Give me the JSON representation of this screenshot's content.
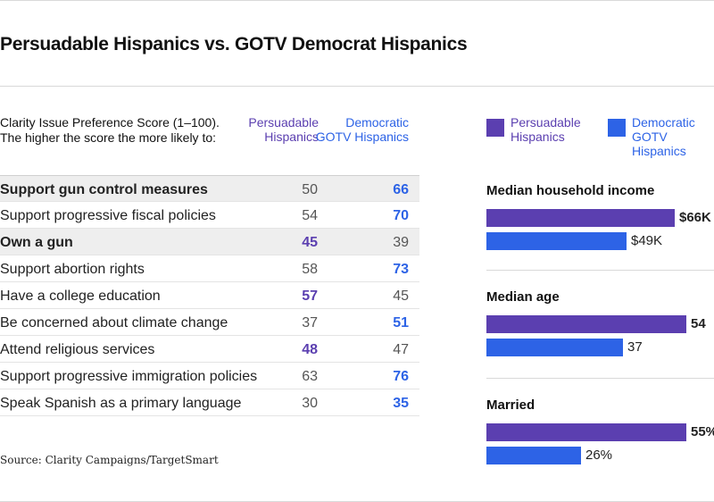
{
  "title": "Persuadable Hispanics vs. GOTV Democrat Hispanics",
  "description": "Clarity Issue Preference Score (1–100). The higher the score the more likely to:",
  "columns": {
    "persuadable": "Persuadable Hispanics",
    "democratic": "Democratic GOTV Hispanics"
  },
  "colors": {
    "persuadable": "#5b3fb0",
    "democratic": "#2d63e6"
  },
  "source": "Source: Clarity Campaigns/TargetSmart",
  "chart_data": [
    {
      "type": "table",
      "title": "Clarity Issue Preference Score (1–100). The higher the score the more likely to:",
      "columns": [
        "Persuadable Hispanics",
        "Democratic GOTV Hispanics"
      ],
      "rows": [
        {
          "label": "Support gun control measures",
          "persuadable": "50",
          "democratic": "66",
          "winner": "democratic",
          "bold": true,
          "shaded": true
        },
        {
          "label": "Support progressive fiscal policies",
          "persuadable": "54",
          "democratic": "70",
          "winner": "democratic",
          "bold": false,
          "shaded": false
        },
        {
          "label": "Own a gun",
          "persuadable": "45",
          "democratic": "39",
          "winner": "persuadable",
          "bold": true,
          "shaded": true
        },
        {
          "label": "Support abortion rights",
          "persuadable": "58",
          "democratic": "73",
          "winner": "democratic",
          "bold": false,
          "shaded": false
        },
        {
          "label": "Have a college education",
          "persuadable": "57",
          "democratic": "45",
          "winner": "persuadable",
          "bold": false,
          "shaded": false
        },
        {
          "label": "Be concerned about climate change",
          "persuadable": "37",
          "democratic": "51",
          "winner": "democratic",
          "bold": false,
          "shaded": false
        },
        {
          "label": "Attend religious services",
          "persuadable": "48",
          "democratic": "47",
          "winner": "persuadable",
          "bold": false,
          "shaded": false
        },
        {
          "label": "Support progressive immigration policies",
          "persuadable": "63",
          "democratic": "76",
          "winner": "democratic",
          "bold": false,
          "shaded": false
        },
        {
          "label": "Speak Spanish as a primary language",
          "persuadable": "30",
          "democratic": "35",
          "winner": "democratic",
          "bold": false,
          "shaded": false
        }
      ]
    },
    {
      "type": "bar",
      "orientation": "horizontal",
      "legend": [
        "Persuadable Hispanics",
        "Democratic GOTV Hispanics"
      ],
      "groups": [
        {
          "title": "Median household income",
          "persuadable": 66,
          "democratic": 49,
          "persuadable_label": "$66K",
          "democratic_label": "$49K",
          "max": 70
        },
        {
          "title": "Median age",
          "persuadable": 54,
          "democratic": 37,
          "persuadable_label": "54",
          "democratic_label": "37",
          "max": 54
        },
        {
          "title": "Married",
          "persuadable": 55,
          "democratic": 26,
          "persuadable_label": "55%",
          "democratic_label": "26%",
          "max": 55
        }
      ]
    }
  ]
}
